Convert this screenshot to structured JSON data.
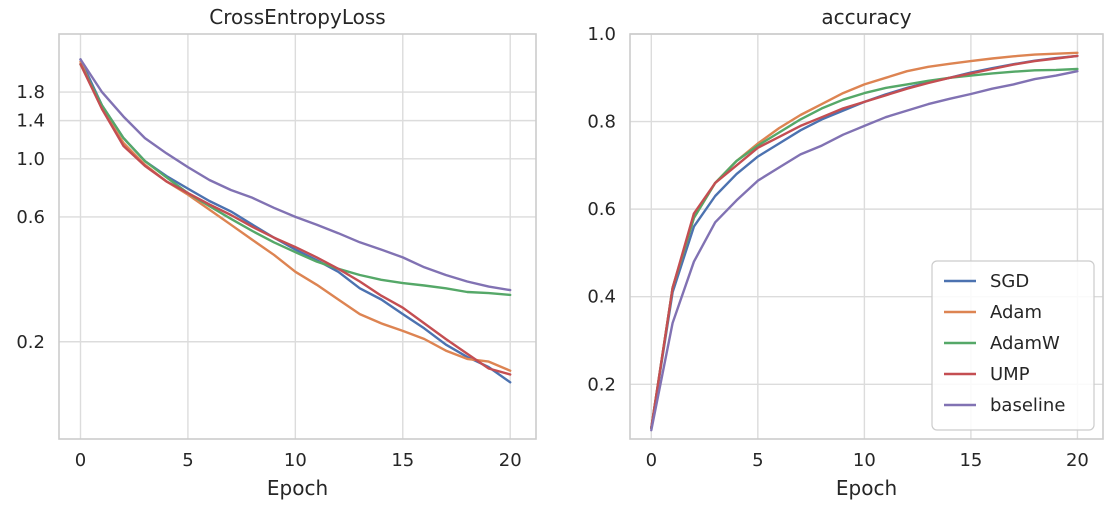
{
  "chart_data": [
    {
      "type": "line",
      "title": "CrossEntropyLoss",
      "xlabel": "Epoch",
      "ylabel": "",
      "yscale": "log",
      "grid": true,
      "xlim": [
        -1,
        21.2
      ],
      "ylim": [
        0.085,
        3.0
      ],
      "xticks": [
        0,
        5,
        10,
        15,
        20
      ],
      "xtick_labels": [
        "0",
        "5",
        "10",
        "15",
        "20"
      ],
      "yticks": [
        0.2,
        0.6,
        1.0,
        1.4,
        1.8
      ],
      "ytick_labels": [
        "0.2",
        "0.6",
        "1.0",
        "1.4",
        "1.8"
      ],
      "x": [
        0,
        1,
        2,
        3,
        4,
        5,
        6,
        7,
        8,
        9,
        10,
        11,
        12,
        13,
        14,
        15,
        16,
        17,
        18,
        19,
        20
      ],
      "series": [
        {
          "name": "SGD",
          "color": "#4c72b0",
          "values": [
            2.4,
            1.6,
            1.2,
            0.98,
            0.86,
            0.77,
            0.69,
            0.63,
            0.56,
            0.5,
            0.45,
            0.41,
            0.37,
            0.32,
            0.29,
            0.255,
            0.225,
            0.195,
            0.175,
            0.16,
            0.14
          ]
        },
        {
          "name": "Adam",
          "color": "#dd8452",
          "values": [
            2.35,
            1.55,
            1.15,
            0.95,
            0.82,
            0.73,
            0.64,
            0.56,
            0.49,
            0.43,
            0.37,
            0.33,
            0.29,
            0.255,
            0.235,
            0.22,
            0.205,
            0.185,
            0.172,
            0.168,
            0.155
          ]
        },
        {
          "name": "AdamW",
          "color": "#55a868",
          "values": [
            2.3,
            1.6,
            1.2,
            0.98,
            0.85,
            0.74,
            0.66,
            0.59,
            0.53,
            0.48,
            0.44,
            0.405,
            0.38,
            0.36,
            0.345,
            0.335,
            0.328,
            0.32,
            0.31,
            0.307,
            0.302
          ]
        },
        {
          "name": "UMP",
          "color": "#c44e52",
          "values": [
            2.3,
            1.55,
            1.12,
            0.94,
            0.82,
            0.74,
            0.67,
            0.61,
            0.55,
            0.5,
            0.46,
            0.42,
            0.38,
            0.34,
            0.3,
            0.27,
            0.235,
            0.205,
            0.18,
            0.158,
            0.15
          ]
        },
        {
          "name": "baseline",
          "color": "#8172b3",
          "values": [
            2.4,
            1.8,
            1.45,
            1.2,
            1.05,
            0.93,
            0.83,
            0.76,
            0.71,
            0.65,
            0.6,
            0.56,
            0.52,
            0.48,
            0.45,
            0.42,
            0.385,
            0.36,
            0.34,
            0.325,
            0.315
          ]
        }
      ]
    },
    {
      "type": "line",
      "title": "accuracy",
      "xlabel": "Epoch",
      "ylabel": "",
      "grid": true,
      "legend": "lower right",
      "xlim": [
        -1,
        21.2
      ],
      "ylim": [
        0.075,
        1.0
      ],
      "xticks": [
        0,
        5,
        10,
        15,
        20
      ],
      "xtick_labels": [
        "0",
        "5",
        "10",
        "15",
        "20"
      ],
      "yticks": [
        0.2,
        0.4,
        0.6,
        0.8,
        1.0
      ],
      "ytick_labels": [
        "0.2",
        "0.4",
        "0.6",
        "0.8",
        "1.0"
      ],
      "x": [
        0,
        1,
        2,
        3,
        4,
        5,
        6,
        7,
        8,
        9,
        10,
        11,
        12,
        13,
        14,
        15,
        16,
        17,
        18,
        19,
        20
      ],
      "series": [
        {
          "name": "SGD",
          "color": "#4c72b0",
          "values": [
            0.1,
            0.41,
            0.56,
            0.63,
            0.68,
            0.72,
            0.75,
            0.78,
            0.805,
            0.825,
            0.845,
            0.862,
            0.877,
            0.89,
            0.9,
            0.912,
            0.922,
            0.931,
            0.939,
            0.945,
            0.95
          ]
        },
        {
          "name": "Adam",
          "color": "#dd8452",
          "values": [
            0.1,
            0.42,
            0.58,
            0.66,
            0.71,
            0.75,
            0.785,
            0.815,
            0.84,
            0.865,
            0.885,
            0.9,
            0.915,
            0.925,
            0.932,
            0.938,
            0.944,
            0.949,
            0.953,
            0.955,
            0.957
          ]
        },
        {
          "name": "AdamW",
          "color": "#55a868",
          "values": [
            0.1,
            0.42,
            0.58,
            0.66,
            0.71,
            0.745,
            0.775,
            0.805,
            0.83,
            0.85,
            0.865,
            0.877,
            0.885,
            0.893,
            0.9,
            0.905,
            0.91,
            0.914,
            0.917,
            0.918,
            0.92
          ]
        },
        {
          "name": "UMP",
          "color": "#c44e52",
          "values": [
            0.1,
            0.42,
            0.59,
            0.66,
            0.7,
            0.74,
            0.765,
            0.79,
            0.81,
            0.83,
            0.845,
            0.86,
            0.875,
            0.888,
            0.9,
            0.91,
            0.92,
            0.93,
            0.938,
            0.944,
            0.95
          ]
        },
        {
          "name": "baseline",
          "color": "#8172b3",
          "values": [
            0.095,
            0.34,
            0.48,
            0.57,
            0.62,
            0.665,
            0.695,
            0.725,
            0.745,
            0.77,
            0.79,
            0.81,
            0.825,
            0.84,
            0.852,
            0.863,
            0.875,
            0.885,
            0.897,
            0.905,
            0.915
          ]
        }
      ]
    }
  ]
}
